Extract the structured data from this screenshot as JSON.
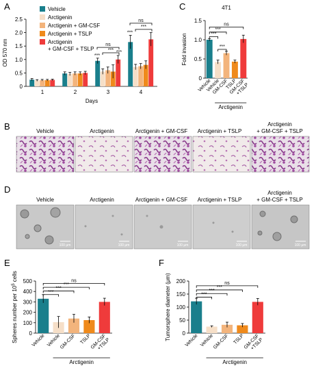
{
  "colors": {
    "vehicle": "#1a7f8c",
    "arctigenin": "#f6dfc8",
    "gmcsf": "#f3b47c",
    "tslp": "#ef8a1c",
    "both": "#ef3b3b",
    "sig": "#000000"
  },
  "panels": {
    "A": "A",
    "B": "B",
    "C": "C",
    "D": "D",
    "E": "E",
    "F": "F"
  },
  "legend": [
    {
      "label": "Vehicle",
      "color": "#1a7f8c"
    },
    {
      "label": "Arctigenin",
      "color": "#f6dfc8"
    },
    {
      "label": "Arctigenin + GM-CSF",
      "color": "#f3b47c"
    },
    {
      "label": "Arctigenin + TSLP",
      "color": "#ef8a1c"
    },
    {
      "label": "Arctigenin",
      "label2": "+ GM-CSF + TSLP",
      "color": "#ef3b3b"
    }
  ],
  "image_labels": {
    "vehicle": "Vehicle",
    "arctigenin": "Arctigenin",
    "gmcsf": "Arctigenin + GM-CSF",
    "tslp": "Arctigenin + TSLP",
    "both_line1": "Arctigenin",
    "both_line2": "+ GM-CSF + TSLP"
  },
  "scale_bar": "100 μm",
  "sig_labels": {
    "ns": "ns",
    "three": "***"
  },
  "chart_data": [
    {
      "panel": "A",
      "type": "bar",
      "categories": [
        "1",
        "2",
        "3",
        "4"
      ],
      "xlabel": "Days",
      "ylabel": "OD 570 nm",
      "ylim": [
        0,
        2.5
      ],
      "yticks": [
        "0",
        "0.5",
        "1.0",
        "1.5",
        "2.0",
        "2.5"
      ],
      "series": [
        {
          "name": "Vehicle",
          "values": [
            0.25,
            0.48,
            0.95,
            1.65
          ],
          "errors": [
            0.04,
            0.06,
            0.1,
            0.25
          ]
        },
        {
          "name": "Arctigenin",
          "values": [
            0.22,
            0.46,
            0.55,
            0.72
          ],
          "errors": [
            0.03,
            0.06,
            0.1,
            0.1
          ]
        },
        {
          "name": "Arctigenin + GM-CSF",
          "values": [
            0.23,
            0.48,
            0.6,
            0.75
          ],
          "errors": [
            0.03,
            0.06,
            0.12,
            0.1
          ]
        },
        {
          "name": "Arctigenin + TSLP",
          "values": [
            0.23,
            0.48,
            0.55,
            0.8
          ],
          "errors": [
            0.03,
            0.06,
            0.25,
            0.15
          ]
        },
        {
          "name": "Arctigenin + GM-CSF + TSLP",
          "values": [
            0.24,
            0.5,
            1.0,
            1.75
          ],
          "errors": [
            0.03,
            0.06,
            0.15,
            0.25
          ]
        }
      ]
    },
    {
      "panel": "C",
      "type": "bar",
      "title": "4T1",
      "categories": [
        "Vehicle",
        "Vehicle",
        "GM-CSF",
        "TSLP",
        "GM-CSF\n+TSLP"
      ],
      "group_label": "Arctigenin",
      "ylabel": "Fold invasion",
      "ylim": [
        0,
        1.5
      ],
      "yticks": [
        "0",
        "0.5",
        "1.0",
        "1.5"
      ],
      "values": [
        1.0,
        0.42,
        0.65,
        0.43,
        1.02
      ],
      "errors": [
        0.03,
        0.05,
        0.05,
        0.04,
        0.1
      ]
    },
    {
      "panel": "E",
      "type": "bar",
      "categories": [
        "Vehicle",
        "Vehicle",
        "GM-CSF",
        "TSLP",
        "GM-CSF\n+TSLP"
      ],
      "group_label": "Arctigenin",
      "ylabel": "Spheres number per 10",
      "ylabel_sup": "5",
      "ylabel_tail": " cells",
      "ylim": [
        0,
        500
      ],
      "yticks": [
        "0",
        "100",
        "200",
        "300",
        "400",
        "500"
      ],
      "values": [
        330,
        105,
        140,
        125,
        300
      ],
      "errors": [
        40,
        55,
        40,
        30,
        35
      ]
    },
    {
      "panel": "F",
      "type": "bar",
      "categories": [
        "Vehicle",
        "Vehicle",
        "GM-CSF",
        "TSLP",
        "GM-CSF\n+TSLP"
      ],
      "group_label": "Arctigenin",
      "ylabel": "Tumorsphere diameter (μm)",
      "ylim": [
        0,
        200
      ],
      "yticks": [
        "0",
        "50",
        "100",
        "150",
        "200"
      ],
      "values": [
        122,
        25,
        32,
        30,
        120
      ],
      "errors": [
        12,
        3,
        10,
        7,
        13
      ]
    }
  ]
}
